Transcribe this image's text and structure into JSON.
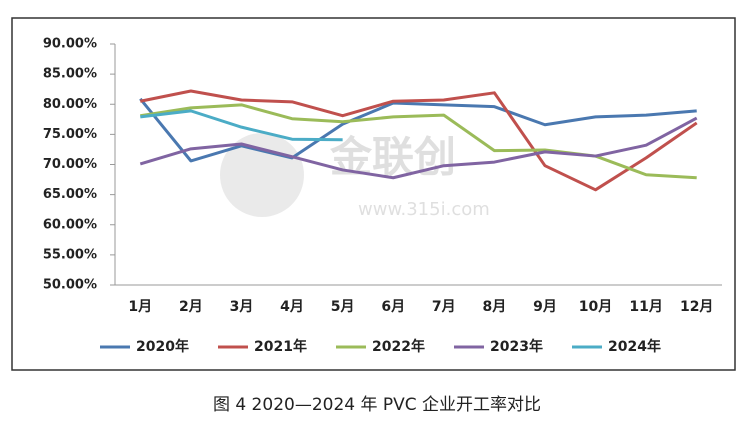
{
  "chart_data": {
    "type": "line",
    "categories": [
      "1月",
      "2月",
      "3月",
      "4月",
      "5月",
      "6月",
      "7月",
      "8月",
      "9月",
      "10月",
      "11月",
      "12月"
    ],
    "series": [
      {
        "name": "2020年",
        "color": "#4a78b0",
        "values": [
          80.9,
          70.6,
          73.1,
          71.1,
          76.7,
          80.2,
          79.9,
          79.6,
          76.6,
          77.9,
          78.2,
          78.9
        ]
      },
      {
        "name": "2021年",
        "color": "#c0504d",
        "values": [
          80.5,
          82.2,
          80.7,
          80.4,
          78.1,
          80.5,
          80.7,
          81.9,
          69.8,
          65.8,
          71.1,
          76.9
        ]
      },
      {
        "name": "2022年",
        "color": "#9bbb59",
        "values": [
          78.1,
          79.4,
          79.9,
          77.6,
          77.1,
          77.9,
          78.2,
          72.3,
          72.4,
          71.4,
          68.3,
          67.8
        ]
      },
      {
        "name": "2023年",
        "color": "#8064a2",
        "values": [
          70.1,
          72.6,
          73.4,
          71.3,
          69.1,
          67.8,
          69.8,
          70.4,
          72.1,
          71.4,
          73.2,
          77.7
        ]
      },
      {
        "name": "2024年",
        "color": "#4bacc6",
        "values": [
          77.9,
          78.9,
          76.2,
          74.2,
          74.1,
          null,
          null,
          null,
          null,
          null,
          null,
          null
        ]
      }
    ],
    "ylim": [
      50,
      90
    ],
    "yticks": [
      {
        "value": 50,
        "label": "50.00%"
      },
      {
        "value": 55,
        "label": "55.00%"
      },
      {
        "value": 60,
        "label": "60.00%"
      },
      {
        "value": 65,
        "label": "65.00%"
      },
      {
        "value": 70,
        "label": "70.00%"
      },
      {
        "value": 75,
        "label": "75.00%"
      },
      {
        "value": 80,
        "label": "80.00%"
      },
      {
        "value": 85,
        "label": "85.00%"
      },
      {
        "value": 90,
        "label": "90.00%"
      }
    ],
    "grid": false,
    "legend": "bottom",
    "watermark": [
      "金联创",
      "www.315i.com"
    ],
    "caption": "图 4  2020—2024 年 PVC 企业开工率对比"
  }
}
